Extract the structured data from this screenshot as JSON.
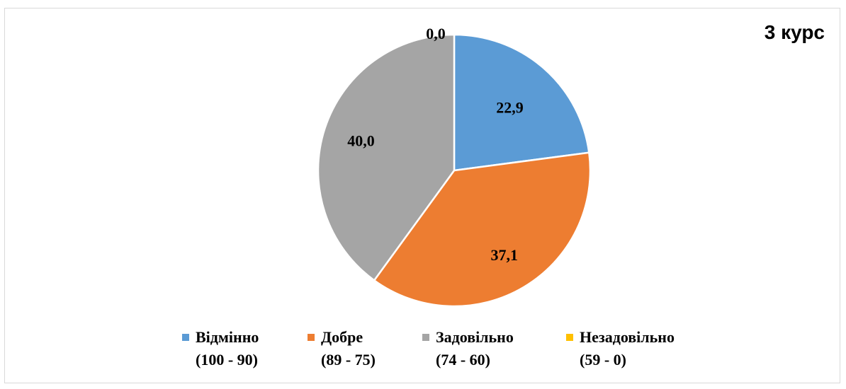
{
  "chart_data": {
    "type": "pie",
    "title": "3 курс",
    "categories": [
      "Відмінно (100 - 90)",
      "Добре (89 - 75)",
      "Задовільно (74 - 60)",
      "Незадовільно (59 - 0)"
    ],
    "values": [
      22.9,
      37.1,
      40.0,
      0.0
    ],
    "value_labels": [
      "22,9",
      "37,1",
      "40,0",
      "0,0"
    ],
    "colors": [
      "#5b9bd5",
      "#ed7d31",
      "#a5a5a5",
      "#ffc000"
    ],
    "legend": {
      "position": "bottom",
      "items": [
        {
          "name": "Відмінно",
          "range": "(100 - 90)"
        },
        {
          "name": "Добре",
          "range": "(89 - 75)"
        },
        {
          "name": "Задовільно",
          "range": "(74 - 60)"
        },
        {
          "name": "Незадовільно",
          "range": "(59 - 0)"
        }
      ]
    }
  }
}
